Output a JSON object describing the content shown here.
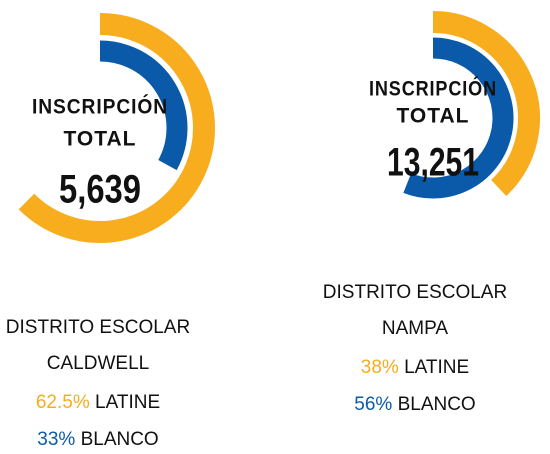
{
  "chart_data": [
    {
      "type": "radial",
      "title_lines": [
        "INSCRIPCIÓN",
        "TOTAL"
      ],
      "total": "5,639",
      "district_label": "DISTRITO ESCOLAR",
      "district": "CALDWELL",
      "ylim": [
        0,
        100
      ],
      "series": [
        {
          "name": "LATINE",
          "color": "#f7ad1d",
          "values": [
            62.5
          ],
          "value_labels": [
            "62.5%"
          ]
        },
        {
          "name": "BLANCO",
          "color": "#0b5aa9",
          "values": [
            33
          ],
          "value_labels": [
            "33%"
          ]
        }
      ]
    },
    {
      "type": "radial",
      "title_lines": [
        "INSCRIPCIÓN",
        "TOTAL"
      ],
      "total": "13,251",
      "district_label": "DISTRITO ESCOLAR",
      "district": "NAMPA",
      "ylim": [
        0,
        100
      ],
      "series": [
        {
          "name": "LATINE",
          "color": "#f7ad1d",
          "values": [
            38
          ],
          "value_labels": [
            "38%"
          ]
        },
        {
          "name": "BLANCO",
          "color": "#0b5aa9",
          "values": [
            56
          ],
          "value_labels": [
            "56%"
          ]
        }
      ]
    }
  ]
}
